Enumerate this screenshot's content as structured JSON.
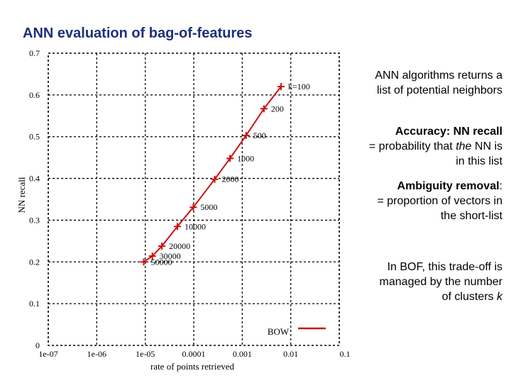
{
  "slide": {
    "title": "ANN evaluation of bag-of-features"
  },
  "chart_data": {
    "type": "line",
    "xlabel": "rate of points retrieved",
    "ylabel": "NN recall",
    "x_scale": "log",
    "xlim": [
      1e-07,
      0.1
    ],
    "ylim": [
      0,
      0.7
    ],
    "x_ticks": [
      1e-07,
      1e-06,
      1e-05,
      0.0001,
      0.001,
      0.01,
      0.1
    ],
    "x_tick_labels": [
      "1e-07",
      "1e-06",
      "1e-05",
      "0.0001",
      "0.001",
      "0.01",
      "0.1"
    ],
    "y_ticks": [
      0,
      0.1,
      0.2,
      0.3,
      0.4,
      0.5,
      0.6,
      0.7
    ],
    "y_tick_labels": [
      "0",
      "0.1",
      "0.2",
      "0.3",
      "0.4",
      "0.5",
      "0.6",
      "0.7"
    ],
    "grid": true,
    "legend_position": "bottom-right",
    "series": [
      {
        "name": "BOW",
        "color": "#cc1111",
        "points": [
          {
            "x": 0.0063,
            "y": 0.62,
            "label": "k=100"
          },
          {
            "x": 0.0028,
            "y": 0.567,
            "label": "200"
          },
          {
            "x": 0.0012,
            "y": 0.503,
            "label": "500"
          },
          {
            "x": 0.00056,
            "y": 0.448,
            "label": "1000"
          },
          {
            "x": 0.00027,
            "y": 0.398,
            "label": "2000"
          },
          {
            "x": 9.8e-05,
            "y": 0.331,
            "label": "5000"
          },
          {
            "x": 4.6e-05,
            "y": 0.285,
            "label": "10000"
          },
          {
            "x": 2.2e-05,
            "y": 0.238,
            "label": "20000"
          },
          {
            "x": 1.4e-05,
            "y": 0.214,
            "label": "30000"
          },
          {
            "x": 9.3e-06,
            "y": 0.2,
            "label": "50000"
          }
        ]
      }
    ]
  },
  "side_notes": {
    "n1": "ANN algorithms returns a list of potential neighbors",
    "n2_lead": "Accuracy: NN recall",
    "n2_rest_a": "= probability that ",
    "n2_the": "the",
    "n2_rest_b": " NN is in this list",
    "n3_lead": "Ambiguity removal",
    "n3_colon": ":",
    "n3_rest": "= proportion of vectors in the short-list",
    "n4_a": "In BOF, this trade-off is managed by the number of clusters ",
    "n4_k": "k"
  }
}
